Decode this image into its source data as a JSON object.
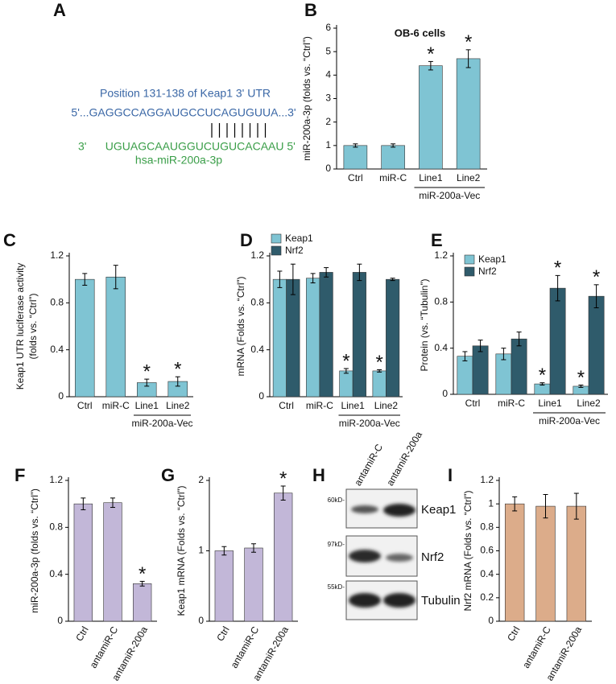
{
  "panel_a": {
    "panel": "A",
    "title": "Position 131-138 of Keap1 3' UTR",
    "target": "5'...GAGGCCAGGAUGCCUCAGUGUUA...3'",
    "mirna": "3'      UGUAGCAAUGGUCUGUCACAAU 5'",
    "mirna_name": "hsa-miR-200a-3p"
  },
  "panel_h": {
    "panel": "H",
    "lanes": [
      "antamiR-C",
      "antamiR-200a"
    ],
    "rows": [
      {
        "marker": "60kD-",
        "protein": "Keap1"
      },
      {
        "marker": "97kD-",
        "protein": "Nrf2"
      },
      {
        "marker": "55kD-",
        "protein": "Tubulin"
      }
    ]
  },
  "chart_data": [
    {
      "type": "bar",
      "panel": "B",
      "title": "OB-6 cells",
      "ylabel": "miR-200a-3p (folds vs. “Ctrl”)",
      "categories": [
        "Ctrl",
        "miR-C",
        "Line1",
        "Line2"
      ],
      "group_label": "miR-200a-Vec",
      "values": [
        1.0,
        1.0,
        4.4,
        4.7
      ],
      "errors": [
        0.07,
        0.07,
        0.18,
        0.38
      ],
      "markers": [
        null,
        null,
        "*",
        "*"
      ],
      "color": "#7fc4d3",
      "ylim": [
        0,
        6
      ],
      "yticks": [
        0,
        1,
        2,
        3,
        4,
        5,
        6
      ]
    },
    {
      "type": "bar",
      "panel": "C",
      "ylabel": [
        "Keap1 UTR luciferase activity",
        "(folds vs. “Ctrl”)"
      ],
      "categories": [
        "Ctrl",
        "miR-C",
        "Line1",
        "Line2"
      ],
      "group_label": "miR-200a-Vec",
      "values": [
        1.0,
        1.02,
        0.12,
        0.13
      ],
      "errors": [
        0.05,
        0.1,
        0.03,
        0.04
      ],
      "markers": [
        null,
        null,
        "*",
        "*"
      ],
      "color": "#7fc4d3",
      "ylim": [
        0,
        1.2
      ],
      "yticks": [
        0,
        0.4,
        0.8,
        1.2
      ]
    },
    {
      "type": "bar",
      "panel": "D",
      "ylabel": "mRNA (Folds vs. “Ctrl”)",
      "categories": [
        "Ctrl",
        "miR-C",
        "Line1",
        "Line2"
      ],
      "group_label": "miR-200a-Vec",
      "series": [
        {
          "name": "Keap1",
          "color": "#7fc4d3",
          "values": [
            1.0,
            1.01,
            0.22,
            0.22
          ],
          "errors": [
            0.07,
            0.04,
            0.02,
            0.01
          ],
          "markers": [
            null,
            null,
            "*",
            "*"
          ]
        },
        {
          "name": "Nrf2",
          "color": "#2f5b6b",
          "values": [
            1.0,
            1.06,
            1.06,
            1.0
          ],
          "errors": [
            0.13,
            0.04,
            0.07,
            0.01
          ]
        }
      ],
      "legend": "top-left",
      "ylim": [
        0,
        1.2
      ],
      "yticks": [
        0,
        0.4,
        0.8,
        1.2
      ]
    },
    {
      "type": "bar",
      "panel": "E",
      "ylabel": "Protein (vs. “Tubulin”)",
      "categories": [
        "Ctrl",
        "miR-C",
        "Line1",
        "Line2"
      ],
      "group_label": "miR-200a-Vec",
      "series": [
        {
          "name": "Keap1",
          "color": "#7fc4d3",
          "values": [
            0.33,
            0.35,
            0.09,
            0.07
          ],
          "errors": [
            0.04,
            0.05,
            0.01,
            0.01
          ],
          "markers": [
            null,
            null,
            "*",
            "*"
          ]
        },
        {
          "name": "Nrf2",
          "color": "#2f5b6b",
          "values": [
            0.42,
            0.48,
            0.92,
            0.85
          ],
          "errors": [
            0.05,
            0.06,
            0.11,
            0.1
          ],
          "markers": [
            null,
            null,
            "*",
            "*"
          ]
        }
      ],
      "legend": "top-left",
      "ylim": [
        0,
        1.2
      ],
      "yticks": [
        0,
        0.4,
        0.8,
        1.2
      ]
    },
    {
      "type": "bar",
      "panel": "F",
      "ylabel": "miR-200a-3p (folds vs. “Ctrl”)",
      "categories": [
        "Ctrl",
        "antamiR-C",
        "antamiR-200a"
      ],
      "rotate_xticks": true,
      "values": [
        1.0,
        1.01,
        0.32
      ],
      "errors": [
        0.05,
        0.04,
        0.02
      ],
      "markers": [
        null,
        null,
        "*"
      ],
      "color": "#c2b7d8",
      "ylim": [
        0,
        1.2
      ],
      "yticks": [
        0,
        0.4,
        0.8,
        1.2
      ]
    },
    {
      "type": "bar",
      "panel": "G",
      "ylabel": "Keap1 mRNA (Folds vs. “Ctrl”)",
      "categories": [
        "Ctrl",
        "antamiR-C",
        "antamiR-200a"
      ],
      "rotate_xticks": true,
      "values": [
        1.0,
        1.04,
        1.82
      ],
      "errors": [
        0.06,
        0.06,
        0.1
      ],
      "markers": [
        null,
        null,
        "*"
      ],
      "color": "#c2b7d8",
      "ylim": [
        0,
        2
      ],
      "yticks": [
        0,
        1,
        2
      ]
    },
    {
      "type": "bar",
      "panel": "I",
      "ylabel": "Nrf2 mRNA (Folds vs. “Ctrl”)",
      "categories": [
        "Ctrl",
        "antamiR-C",
        "antamiR-200a"
      ],
      "rotate_xticks": true,
      "values": [
        1.0,
        0.98,
        0.98
      ],
      "errors": [
        0.06,
        0.1,
        0.11
      ],
      "color": "#dcac8a",
      "ylim": [
        0,
        1.2
      ],
      "yticks": [
        0,
        0.2,
        0.4,
        0.6,
        0.8,
        1,
        1.2
      ]
    }
  ]
}
